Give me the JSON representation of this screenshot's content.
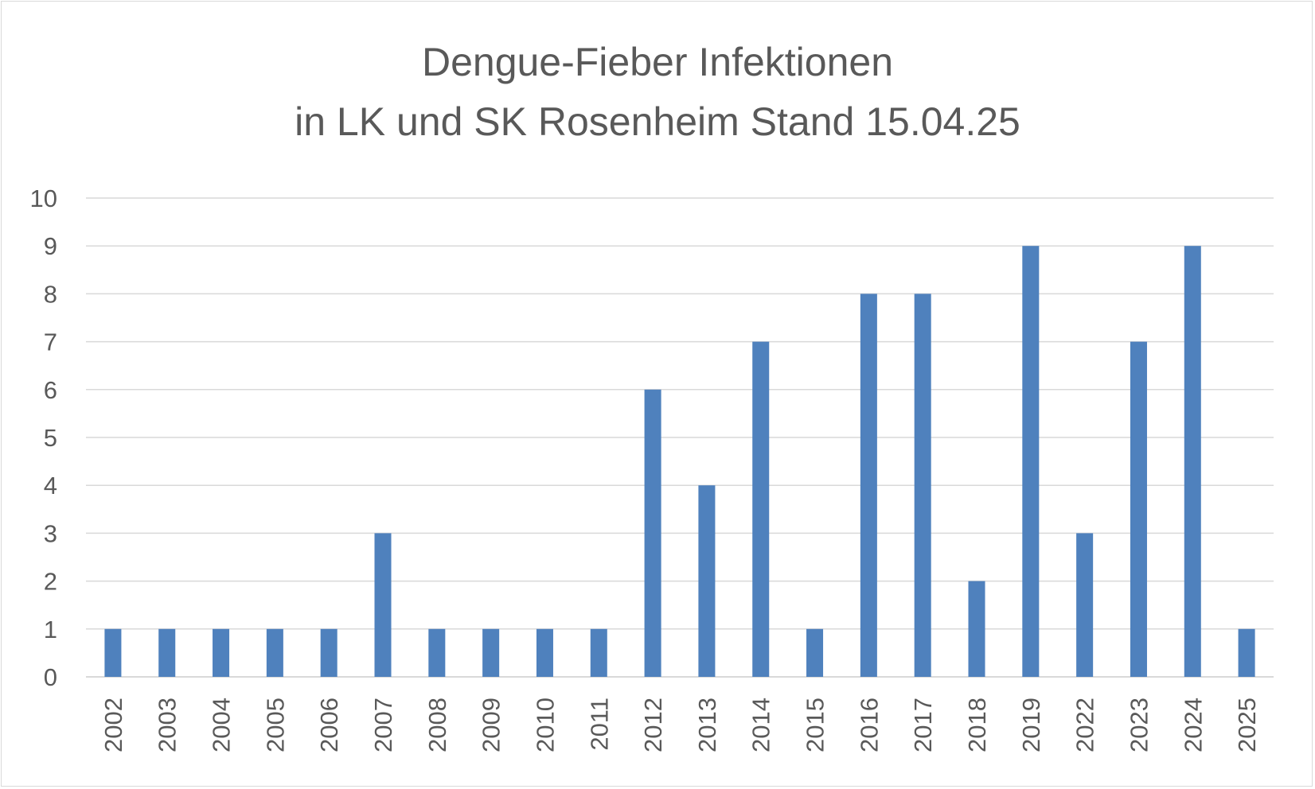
{
  "chart_data": {
    "type": "bar",
    "title_line1": "Dengue-Fieber Infektionen",
    "title_line2": "in LK und SK Rosenheim Stand 15.04.25",
    "xlabel": "",
    "ylabel": "",
    "categories": [
      "2002",
      "2003",
      "2004",
      "2005",
      "2006",
      "2007",
      "2008",
      "2009",
      "2010",
      "2011",
      "2012",
      "2013",
      "2014",
      "2015",
      "2016",
      "2017",
      "2018",
      "2019",
      "2022",
      "2023",
      "2024",
      "2025"
    ],
    "values": [
      1,
      1,
      1,
      1,
      1,
      3,
      1,
      1,
      1,
      1,
      6,
      4,
      7,
      1,
      8,
      8,
      2,
      9,
      3,
      7,
      9,
      1
    ],
    "ylim": [
      0,
      10
    ],
    "yticks": [
      "0",
      "1",
      "2",
      "3",
      "4",
      "5",
      "6",
      "7",
      "8",
      "9",
      "10"
    ],
    "grid": true,
    "legend": "none",
    "colors": {
      "bar": "#4f81bd",
      "grid": "#d9d9d9",
      "text": "#595959"
    }
  }
}
